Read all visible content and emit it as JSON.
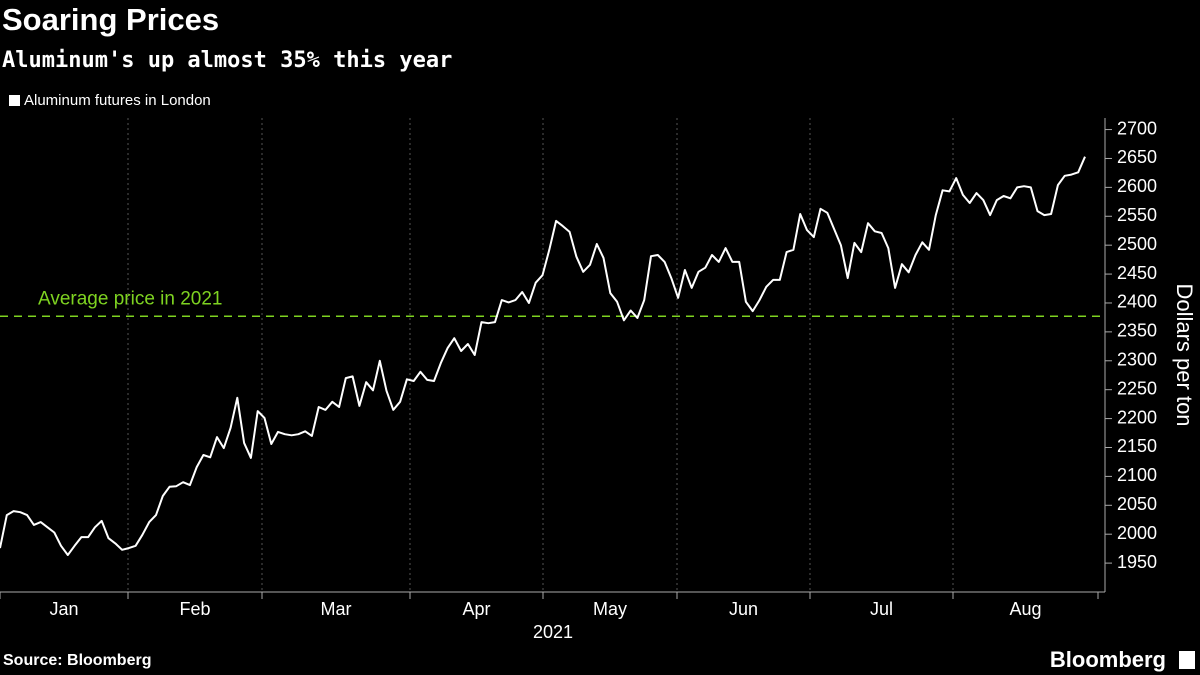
{
  "chart_data": {
    "type": "line",
    "title": "Soaring Prices",
    "subtitle": "Aluminum's up almost 35% this year",
    "months": [
      "Jan",
      "Feb",
      "Mar",
      "Apr",
      "May",
      "Jun",
      "Jul",
      "Aug"
    ],
    "year": "2021",
    "y_label": "Dollars per ton",
    "ylim": [
      1900,
      2720
    ],
    "yticks": [
      1950,
      2000,
      2050,
      2100,
      2150,
      2200,
      2250,
      2300,
      2350,
      2400,
      2450,
      2500,
      2550,
      2600,
      2650,
      2700
    ],
    "series": [
      {
        "name": "Aluminum futures in London",
        "color": "#ffffff",
        "values": [
          1976,
          2033,
          2040,
          2038,
          2033,
          2016,
          2021,
          2012,
          2003,
          1980,
          1964,
          1980,
          1995,
          1995,
          2012,
          2023,
          1993,
          1984,
          1973,
          1976,
          1980,
          1999,
          2021,
          2033,
          2066,
          2082,
          2083,
          2090,
          2085,
          2116,
          2137,
          2133,
          2168,
          2149,
          2184,
          2236,
          2158,
          2132,
          2213,
          2201,
          2156,
          2177,
          2173,
          2171,
          2173,
          2178,
          2170,
          2220,
          2215,
          2229,
          2220,
          2270,
          2273,
          2222,
          2263,
          2249,
          2300,
          2248,
          2215,
          2229,
          2268,
          2265,
          2281,
          2267,
          2265,
          2296,
          2322,
          2339,
          2317,
          2329,
          2310,
          2367,
          2365,
          2367,
          2405,
          2401,
          2405,
          2419,
          2400,
          2435,
          2448,
          2492,
          2542,
          2533,
          2523,
          2480,
          2454,
          2466,
          2502,
          2478,
          2417,
          2402,
          2370,
          2387,
          2374,
          2405,
          2481,
          2483,
          2471,
          2443,
          2409,
          2457,
          2426,
          2454,
          2461,
          2483,
          2471,
          2495,
          2471,
          2471,
          2402,
          2386,
          2405,
          2428,
          2440,
          2440,
          2488,
          2492,
          2554,
          2526,
          2514,
          2563,
          2556,
          2528,
          2500,
          2443,
          2504,
          2488,
          2538,
          2524,
          2521,
          2495,
          2426,
          2467,
          2453,
          2483,
          2505,
          2492,
          2552,
          2595,
          2593,
          2616,
          2587,
          2573,
          2590,
          2578,
          2552,
          2578,
          2585,
          2581,
          2600,
          2602,
          2600,
          2559,
          2552,
          2554,
          2604,
          2620,
          2622,
          2626,
          2653
        ]
      }
    ],
    "average": 2377,
    "average_label": "Average price in 2021",
    "average_color": "#7ed321",
    "source": "Source: Bloomberg",
    "brand": "Bloomberg"
  }
}
